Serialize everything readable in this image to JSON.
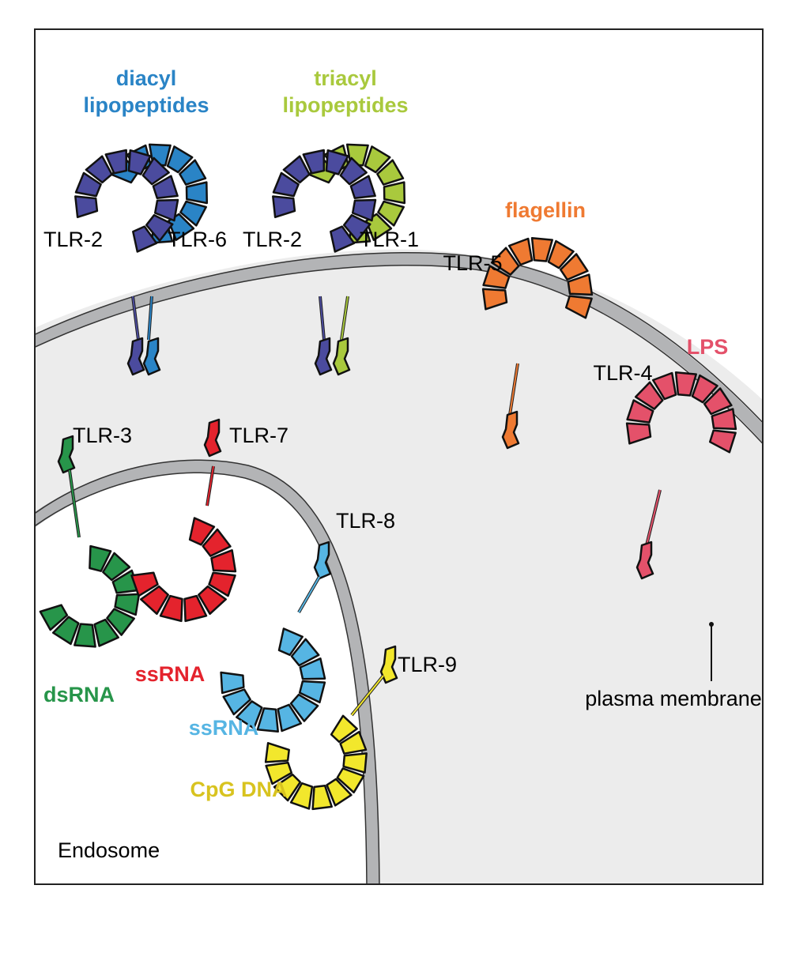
{
  "colors": {
    "tlr2": "#4b4b9e",
    "tlr6": "#2a84c6",
    "tlr1": "#a9c93d",
    "tlr5": "#ef7a32",
    "tlr4": "#e4516a",
    "tlr3": "#27954a",
    "tlr7": "#e4232d",
    "tlr8": "#56b5e3",
    "tlr9": "#f2e72c",
    "membrane": "#b3b4b6",
    "cytoplasm": "#ececec",
    "endosome_lumen": "#ffffff"
  },
  "labels": {
    "diacyl": [
      "diacyl",
      "lipopeptides"
    ],
    "triacyl": [
      "triacyl",
      "lipopeptides"
    ],
    "flagellin": "flagellin",
    "lps": "LPS",
    "tlr2_a": "TLR-2",
    "tlr6": "TLR-6",
    "tlr2_b": "TLR-2",
    "tlr1": "TLR-1",
    "tlr5": "TLR-5",
    "tlr4": "TLR-4",
    "tlr3": "TLR-3",
    "tlr7": "TLR-7",
    "tlr8": "TLR-8",
    "tlr9": "TLR-9",
    "dsrna": "dsRNA",
    "ssrna_a": "ssRNA",
    "ssrna_b": "ssRNA",
    "cpg": "CpG DNA",
    "plasma_membrane": "plasma membrane",
    "endosome": "Endosome"
  }
}
